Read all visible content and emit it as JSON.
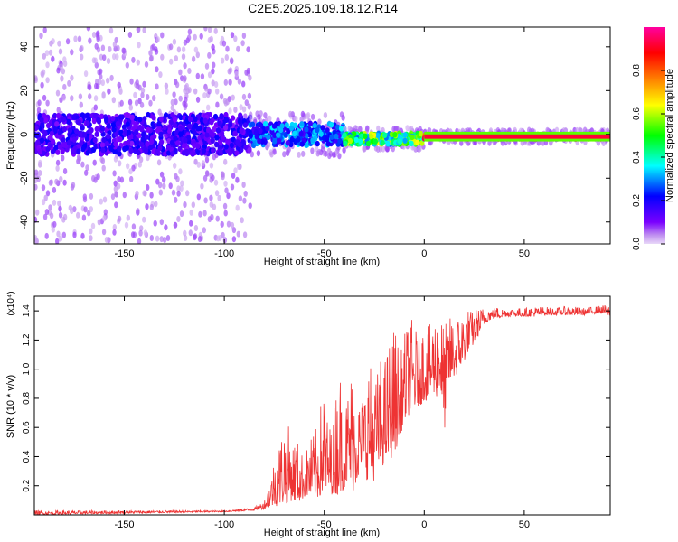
{
  "title": "C2E5.2025.109.18.12.R14",
  "chart_data": [
    {
      "type": "heatmap",
      "title": "C2E5.2025.109.18.12.R14",
      "xlabel": "Height of straight line (km)",
      "ylabel": "Frequency (Hz)",
      "xlim": [
        -195,
        93
      ],
      "ylim": [
        -50,
        49
      ],
      "xticks": [
        -150,
        -100,
        -50,
        0,
        50
      ],
      "yticks": [
        -40,
        -20,
        0,
        20,
        40
      ],
      "colorbar": {
        "label": "Normalized spectral amplitude",
        "range": [
          0,
          1
        ],
        "ticks": [
          0,
          0.2,
          0.4,
          0.6,
          0.8
        ],
        "colors": [
          "#e8d8f8",
          "#7a00ff",
          "#0000ff",
          "#00ffff",
          "#00ff00",
          "#ffff00",
          "#ff8000",
          "#ff0000",
          "#ff00a0"
        ]
      },
      "bands": [
        {
          "x_from": -195,
          "x_to": -87,
          "freq_center": 0,
          "freq_halfwidth_core": 9,
          "freq_halfwidth_halo": 49,
          "amplitude": 0.18
        },
        {
          "x_from": -87,
          "x_to": -40,
          "freq_center": 0,
          "freq_halfwidth_core": 5,
          "freq_halfwidth_halo": 10,
          "amplitude": 0.3
        },
        {
          "x_from": -40,
          "x_to": 0,
          "freq_center": -2,
          "freq_halfwidth_core": 2.5,
          "freq_halfwidth_halo": 5,
          "amplitude": 0.55
        },
        {
          "x_from": 0,
          "x_to": 93,
          "freq_center": -1,
          "freq_halfwidth_core": 1,
          "freq_halfwidth_halo": 3,
          "amplitude": 0.92
        }
      ]
    },
    {
      "type": "line",
      "xlabel": "Height of straight line (km)",
      "ylabel": "SNR (10 * v/v)",
      "y_multiplier": "(x10⁴)",
      "xlim": [
        -195,
        93
      ],
      "ylim": [
        0,
        1.5
      ],
      "xticks": [
        -150,
        -100,
        -50,
        0,
        50
      ],
      "yticks": [
        0.2,
        0.4,
        0.6,
        0.8,
        1.0,
        1.2,
        1.4
      ],
      "series": [
        {
          "name": "SNR",
          "color": "#ee3333",
          "x": [
            -195,
            -100,
            -85,
            -80,
            -77,
            -75,
            -72,
            -70,
            -68,
            -66,
            -64,
            -62,
            -60,
            -58,
            -56,
            -54,
            -52,
            -50,
            -48,
            -46,
            -44,
            -42,
            -40,
            -38,
            -36,
            -34,
            -32,
            -30,
            -28,
            -26,
            -24,
            -22,
            -20,
            -18,
            -16,
            -14,
            -12,
            -10,
            -8,
            -6,
            -4,
            -2,
            0,
            2,
            4,
            6,
            8,
            10,
            12,
            14,
            16,
            18,
            20,
            22,
            24,
            26,
            28,
            30,
            32,
            34,
            36,
            38,
            40,
            45,
            50,
            55,
            60,
            65,
            70,
            75,
            80,
            85,
            90,
            93
          ],
          "y_low": [
            0.0,
            0.02,
            0.03,
            0.04,
            0.05,
            0.06,
            0.06,
            0.07,
            0.08,
            0.1,
            0.08,
            0.09,
            0.12,
            0.12,
            0.1,
            0.1,
            0.12,
            0.14,
            0.15,
            0.14,
            0.13,
            0.15,
            0.18,
            0.2,
            0.15,
            0.2,
            0.28,
            0.22,
            0.25,
            0.2,
            0.3,
            0.3,
            0.35,
            0.35,
            0.4,
            0.45,
            0.55,
            0.62,
            0.68,
            0.7,
            0.72,
            0.75,
            0.78,
            0.78,
            0.82,
            0.8,
            0.85,
            0.55,
            0.88,
            0.92,
            0.95,
            1.0,
            1.05,
            1.12,
            1.15,
            1.2,
            1.25,
            1.3,
            1.33,
            1.34,
            1.35,
            1.35,
            1.36,
            1.36,
            1.36,
            1.36,
            1.37,
            1.37,
            1.37,
            1.37,
            1.37,
            1.38,
            1.38,
            1.36
          ],
          "y_high": [
            0.03,
            0.03,
            0.05,
            0.1,
            0.25,
            0.4,
            0.55,
            0.66,
            0.62,
            0.5,
            0.55,
            0.45,
            0.4,
            0.5,
            0.55,
            0.6,
            0.75,
            0.9,
            0.6,
            0.65,
            0.9,
            1.0,
            0.7,
            0.9,
            1.05,
            1.0,
            0.75,
            0.9,
            1.1,
            1.0,
            0.95,
            1.1,
            1.05,
            1.2,
            1.3,
            1.28,
            1.1,
            1.25,
            1.32,
            1.35,
            1.28,
            1.3,
            1.33,
            1.28,
            1.36,
            1.4,
            1.43,
            1.3,
            1.35,
            1.38,
            1.35,
            1.4,
            1.4,
            1.42,
            1.4,
            1.42,
            1.42,
            1.43,
            1.43,
            1.42,
            1.43,
            1.42,
            1.42,
            1.42,
            1.42,
            1.43,
            1.43,
            1.42,
            1.43,
            1.43,
            1.42,
            1.43,
            1.44,
            1.44
          ]
        }
      ]
    }
  ]
}
